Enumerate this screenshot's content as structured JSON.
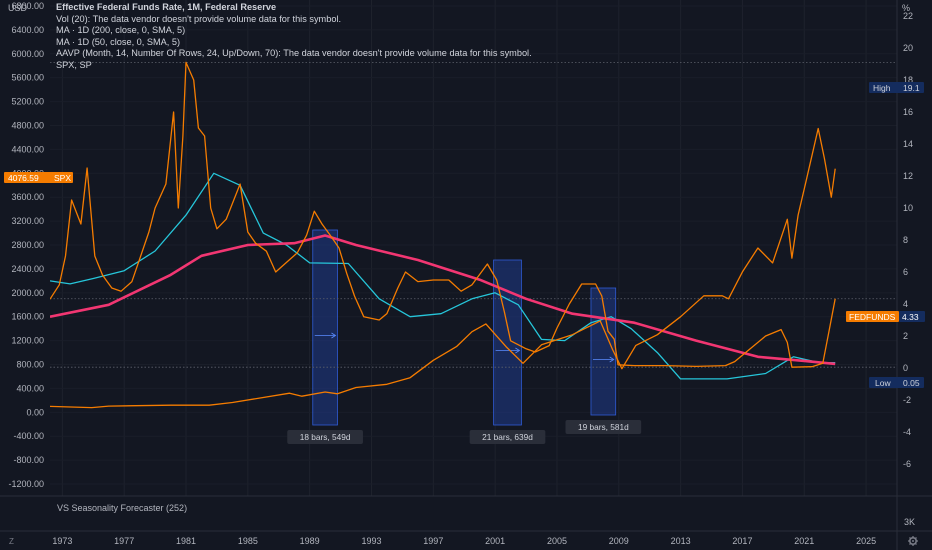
{
  "header": {
    "title": "Effective Federal Funds Rate, 1M, Federal Reserve",
    "indicators": [
      "Vol (20): The data vendor doesn't provide volume data for this symbol.",
      "MA · 1D (200, close, 0, SMA, 5)",
      "MA · 1D (50, close, 0, SMA, 5)",
      "AAVP (Month, 14, Number Of Rows, 24, Up/Down, 70): The data vendor doesn't provide volume data for this symbol.",
      "SPX, SP"
    ]
  },
  "lower_pane": {
    "label": "VS Seasonality Forecaster (252)",
    "right_tick": "3K"
  },
  "bottom": {
    "left_icon_label": "Z",
    "right_icon": "gear-icon"
  },
  "badges": {
    "spx_value": "4076.59",
    "spx_label": "SPX",
    "fedfunds_label": "FEDFUNDS",
    "fedfunds_value": "4.33",
    "high_label": "High",
    "high_value": "19.1",
    "low_label": "Low",
    "low_value": "0.05"
  },
  "colors": {
    "background": "#131722",
    "spx": "#f57c00",
    "fedfunds": "#f57c00",
    "ma200": "#f23672",
    "ma50": "#26c6da",
    "band": "#1e3d8f",
    "badge_navy": "#142c5e",
    "grid": "#2a2e39"
  },
  "chart_data": {
    "type": "line",
    "title": "Effective Federal Funds Rate, 1M, Federal Reserve",
    "left_axis": {
      "unit": "USD",
      "ylim": [
        -1400,
        6900
      ],
      "ticks": [
        6800,
        6400,
        6000,
        5600,
        5200,
        4800,
        4400,
        4000,
        3600,
        3200,
        2800,
        2400,
        2000,
        1600,
        1200,
        800,
        400,
        0,
        -400,
        -800,
        -1200
      ]
    },
    "right_axis": {
      "unit": "%",
      "ylim": [
        -8,
        23
      ],
      "ticks": [
        22,
        20,
        18,
        16,
        14,
        12,
        10,
        8,
        6,
        4,
        2,
        0,
        -2,
        -4,
        -6
      ]
    },
    "x_axis": {
      "xlim": [
        1972.2,
        2027
      ],
      "ticks": [
        1973,
        1977,
        1981,
        1985,
        1989,
        1993,
        1997,
        2001,
        2005,
        2009,
        2013,
        2017,
        2021,
        2025
      ]
    },
    "series": [
      {
        "name": "FEDFUNDS",
        "axis": "right",
        "color": "#f57c00",
        "points": [
          [
            1972.2,
            4.3
          ],
          [
            1972.8,
            5.2
          ],
          [
            1973.2,
            7
          ],
          [
            1973.6,
            10.5
          ],
          [
            1974.2,
            9
          ],
          [
            1974.6,
            12.5
          ],
          [
            1975.1,
            7
          ],
          [
            1975.6,
            5.8
          ],
          [
            1976.2,
            5
          ],
          [
            1976.8,
            4.8
          ],
          [
            1977.5,
            5.4
          ],
          [
            1978,
            6.8
          ],
          [
            1978.6,
            8.5
          ],
          [
            1979,
            10
          ],
          [
            1979.7,
            11.5
          ],
          [
            1980.2,
            16
          ],
          [
            1980.5,
            10
          ],
          [
            1980.8,
            14.5
          ],
          [
            1981.0,
            19.1
          ],
          [
            1981.5,
            18
          ],
          [
            1981.8,
            15
          ],
          [
            1982.2,
            14.5
          ],
          [
            1982.6,
            10
          ],
          [
            1983,
            8.7
          ],
          [
            1983.6,
            9.3
          ],
          [
            1984.5,
            11.5
          ],
          [
            1985,
            8.5
          ],
          [
            1985.5,
            7.8
          ],
          [
            1986.2,
            7.3
          ],
          [
            1986.8,
            6
          ],
          [
            1987.5,
            6.6
          ],
          [
            1988.2,
            7.2
          ],
          [
            1988.8,
            8.3
          ],
          [
            1989.3,
            9.8
          ],
          [
            1989.8,
            9
          ],
          [
            1990.4,
            8.2
          ],
          [
            1990.9,
            7.5
          ],
          [
            1991.4,
            5.9
          ],
          [
            1991.9,
            4.5
          ],
          [
            1992.5,
            3.2
          ],
          [
            1993.5,
            3
          ],
          [
            1994,
            3.4
          ],
          [
            1994.7,
            5
          ],
          [
            1995.2,
            6
          ],
          [
            1996,
            5.4
          ],
          [
            1997,
            5.5
          ],
          [
            1998,
            5.5
          ],
          [
            1998.8,
            4.8
          ],
          [
            1999.5,
            5.2
          ],
          [
            2000.5,
            6.5
          ],
          [
            2001.1,
            5.5
          ],
          [
            2001.6,
            3.5
          ],
          [
            2002,
            1.7
          ],
          [
            2003,
            1.2
          ],
          [
            2003.6,
            1
          ],
          [
            2004.5,
            1.4
          ],
          [
            2005,
            2.5
          ],
          [
            2005.8,
            4
          ],
          [
            2006.6,
            5.25
          ],
          [
            2007.5,
            5.25
          ],
          [
            2007.9,
            4.5
          ],
          [
            2008.3,
            2.3
          ],
          [
            2008.7,
            1.8
          ],
          [
            2008.95,
            0.2
          ],
          [
            2010,
            0.15
          ],
          [
            2012,
            0.15
          ],
          [
            2014,
            0.1
          ],
          [
            2015.9,
            0.15
          ],
          [
            2016.5,
            0.4
          ],
          [
            2017.5,
            1.2
          ],
          [
            2018.5,
            2
          ],
          [
            2019.5,
            2.4
          ],
          [
            2019.9,
            1.6
          ],
          [
            2020.2,
            0.05
          ],
          [
            2021.5,
            0.08
          ],
          [
            2022.2,
            0.3
          ],
          [
            2022.6,
            2.3
          ],
          [
            2023.0,
            4.33
          ]
        ]
      },
      {
        "name": "SPX",
        "axis": "left",
        "color": "#f57c00",
        "points": [
          [
            1972.2,
            100
          ],
          [
            1974.9,
            80
          ],
          [
            1976,
            105
          ],
          [
            1980,
            120
          ],
          [
            1982.5,
            120
          ],
          [
            1984,
            165
          ],
          [
            1987.7,
            320
          ],
          [
            1988.5,
            270
          ],
          [
            1990,
            340
          ],
          [
            1990.8,
            310
          ],
          [
            1992,
            415
          ],
          [
            1994,
            470
          ],
          [
            1995.5,
            580
          ],
          [
            1997,
            870
          ],
          [
            1998.5,
            1100
          ],
          [
            1999.5,
            1350
          ],
          [
            2000.4,
            1480
          ],
          [
            2001.7,
            1100
          ],
          [
            2002.8,
            820
          ],
          [
            2004,
            1130
          ],
          [
            2006,
            1300
          ],
          [
            2007.8,
            1530
          ],
          [
            2008.6,
            1050
          ],
          [
            2009.2,
            730
          ],
          [
            2010.1,
            1120
          ],
          [
            2011.5,
            1300
          ],
          [
            2013,
            1600
          ],
          [
            2014.5,
            1950
          ],
          [
            2015.7,
            1950
          ],
          [
            2016.1,
            1900
          ],
          [
            2017,
            2350
          ],
          [
            2018,
            2750
          ],
          [
            2018.95,
            2500
          ],
          [
            2019.9,
            3230
          ],
          [
            2020.2,
            2580
          ],
          [
            2020.6,
            3300
          ],
          [
            2021.1,
            3850
          ],
          [
            2021.9,
            4750
          ],
          [
            2022.3,
            4250
          ],
          [
            2022.75,
            3600
          ],
          [
            2023.0,
            4076.59
          ]
        ]
      },
      {
        "name": "MA 200",
        "axis": "left",
        "color": "#f23672",
        "points": [
          [
            1972.2,
            1600
          ],
          [
            1976,
            1800
          ],
          [
            1980,
            2300
          ],
          [
            1982,
            2620
          ],
          [
            1985,
            2800
          ],
          [
            1988,
            2830
          ],
          [
            1990,
            2960
          ],
          [
            1992,
            2800
          ],
          [
            1996,
            2550
          ],
          [
            2000,
            2220
          ],
          [
            2003,
            1900
          ],
          [
            2006,
            1650
          ],
          [
            2010,
            1500
          ],
          [
            2014,
            1200
          ],
          [
            2018,
            930
          ],
          [
            2021,
            860
          ],
          [
            2023,
            810
          ]
        ]
      },
      {
        "name": "MA 50",
        "axis": "left",
        "color": "#26c6da",
        "points": [
          [
            1972.2,
            2200
          ],
          [
            1973.5,
            2150
          ],
          [
            1975,
            2240
          ],
          [
            1977,
            2370
          ],
          [
            1979,
            2700
          ],
          [
            1981,
            3300
          ],
          [
            1982.8,
            4000
          ],
          [
            1984.5,
            3800
          ],
          [
            1986,
            3000
          ],
          [
            1987.5,
            2800
          ],
          [
            1989,
            2500
          ],
          [
            1991.5,
            2490
          ],
          [
            1993.5,
            1900
          ],
          [
            1995.5,
            1600
          ],
          [
            1997.5,
            1650
          ],
          [
            1999.5,
            1900
          ],
          [
            2001,
            2000
          ],
          [
            2002.5,
            1800
          ],
          [
            2004,
            1220
          ],
          [
            2005.5,
            1200
          ],
          [
            2007.2,
            1500
          ],
          [
            2008.5,
            1600
          ],
          [
            2009.8,
            1400
          ],
          [
            2011.5,
            1000
          ],
          [
            2013,
            560
          ],
          [
            2016,
            560
          ],
          [
            2018.5,
            650
          ],
          [
            2020.3,
            930
          ],
          [
            2022,
            830
          ],
          [
            2023,
            830
          ]
        ]
      }
    ],
    "bands": [
      {
        "x_start": 1989.2,
        "x_end": 1990.8,
        "label": "18 bars, 549d"
      },
      {
        "x_start": 2000.9,
        "x_end": 2002.7,
        "label": "21 bars, 639d"
      },
      {
        "x_start": 2007.2,
        "x_end": 2008.8,
        "label": "19 bars, 581d"
      }
    ],
    "reference_lines": [
      {
        "name": "High",
        "axis": "right",
        "value": 19.1
      },
      {
        "name": "FEDFUNDS last",
        "axis": "right",
        "value": 4.33
      },
      {
        "name": "Low",
        "axis": "right",
        "value": 0.05
      }
    ]
  }
}
